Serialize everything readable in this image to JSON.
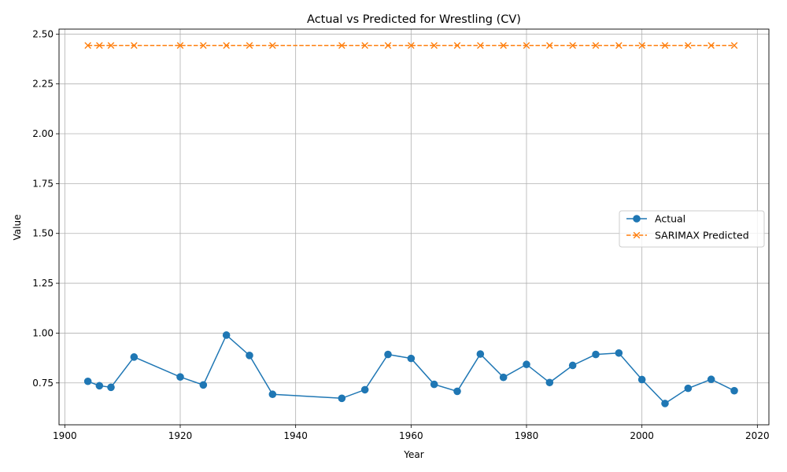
{
  "chart_data": {
    "type": "line",
    "title": "Actual vs Predicted for Wrestling (CV)",
    "xlabel": "Year",
    "ylabel": "Value",
    "xlim": [
      1899,
      2022
    ],
    "ylim": [
      0.54,
      2.525
    ],
    "xticks": [
      1900,
      1920,
      1940,
      1960,
      1980,
      2000,
      2020
    ],
    "yticks": [
      0.75,
      1.0,
      1.25,
      1.5,
      1.75,
      2.0,
      2.25,
      2.5
    ],
    "ytick_labels": [
      "0.75",
      "1.00",
      "1.25",
      "1.50",
      "1.75",
      "2.00",
      "2.25",
      "2.50"
    ],
    "grid": true,
    "legend_position": "center-right",
    "x": [
      1904,
      1906,
      1908,
      1912,
      1920,
      1924,
      1928,
      1932,
      1936,
      1948,
      1952,
      1956,
      1960,
      1964,
      1968,
      1972,
      1976,
      1980,
      1984,
      1988,
      1992,
      1996,
      2000,
      2004,
      2008,
      2012,
      2016
    ],
    "series": [
      {
        "name": "Actual",
        "color": "#1f77b4",
        "style": "solid",
        "marker": "circle",
        "values": [
          0.758,
          0.736,
          0.728,
          0.88,
          0.78,
          0.74,
          0.99,
          0.888,
          0.693,
          0.673,
          0.716,
          0.893,
          0.873,
          0.743,
          0.708,
          0.895,
          0.778,
          0.843,
          0.752,
          0.838,
          0.893,
          0.9,
          0.767,
          0.647,
          0.723,
          0.768,
          0.711
        ]
      },
      {
        "name": "SARIMAX Predicted",
        "color": "#ff7f0e",
        "style": "dashed",
        "marker": "x",
        "values": [
          2.443,
          2.443,
          2.443,
          2.443,
          2.443,
          2.443,
          2.443,
          2.443,
          2.443,
          2.443,
          2.443,
          2.443,
          2.443,
          2.443,
          2.443,
          2.443,
          2.443,
          2.443,
          2.443,
          2.443,
          2.443,
          2.443,
          2.443,
          2.443,
          2.443,
          2.443,
          2.443
        ]
      }
    ]
  }
}
